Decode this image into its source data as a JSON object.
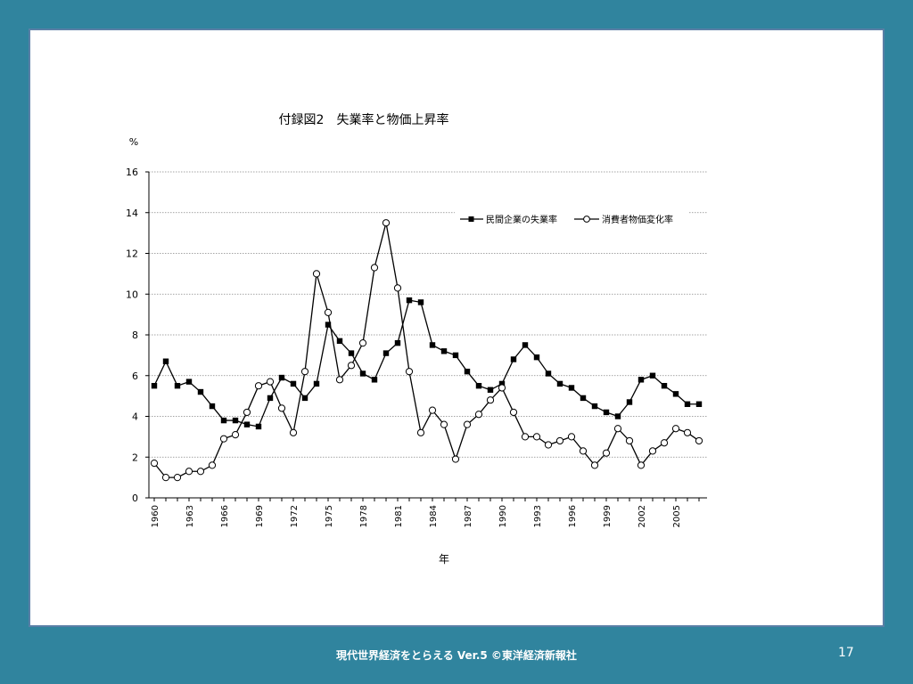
{
  "slide": {
    "footer": "現代世界経済をとらえる Ver.5 ©東洋経済新報社",
    "page_number": "17"
  },
  "chart_data": {
    "type": "line",
    "title": "付録図2　失業率と物価上昇率",
    "ylabel": "%",
    "xlabel": "年",
    "ylim": [
      0,
      16
    ],
    "y_ticks": [
      0,
      2,
      4,
      6,
      8,
      10,
      12,
      14,
      16
    ],
    "x_tick_labels": [
      "1960",
      "1963",
      "1966",
      "1969",
      "1972",
      "1975",
      "1978",
      "1981",
      "1984",
      "1987",
      "1990",
      "1993",
      "1996",
      "1999",
      "2002",
      "2005"
    ],
    "grid": true,
    "legend_position": "top-right",
    "x": [
      1960,
      1961,
      1962,
      1963,
      1964,
      1965,
      1966,
      1967,
      1968,
      1969,
      1970,
      1971,
      1972,
      1973,
      1974,
      1975,
      1976,
      1977,
      1978,
      1979,
      1980,
      1981,
      1982,
      1983,
      1984,
      1985,
      1986,
      1987,
      1988,
      1989,
      1990,
      1991,
      1992,
      1993,
      1994,
      1995,
      1996,
      1997,
      1998,
      1999,
      2000,
      2001,
      2002,
      2003,
      2004,
      2005,
      2006,
      2007
    ],
    "series": [
      {
        "name": "民間企業の失業率",
        "marker": "filled-square",
        "color": "#000000",
        "values": [
          5.5,
          6.7,
          5.5,
          5.7,
          5.2,
          4.5,
          3.8,
          3.8,
          3.6,
          3.5,
          4.9,
          5.9,
          5.6,
          4.9,
          5.6,
          8.5,
          7.7,
          7.1,
          6.1,
          5.8,
          7.1,
          7.6,
          9.7,
          9.6,
          7.5,
          7.2,
          7.0,
          6.2,
          5.5,
          5.3,
          5.6,
          6.8,
          7.5,
          6.9,
          6.1,
          5.6,
          5.4,
          4.9,
          4.5,
          4.2,
          4.0,
          4.7,
          5.8,
          6.0,
          5.5,
          5.1,
          4.6,
          4.6
        ]
      },
      {
        "name": "消費者物価変化率",
        "marker": "open-circle",
        "color": "#000000",
        "values": [
          1.7,
          1.0,
          1.0,
          1.3,
          1.3,
          1.6,
          2.9,
          3.1,
          4.2,
          5.5,
          5.7,
          4.4,
          3.2,
          6.2,
          11.0,
          9.1,
          5.8,
          6.5,
          7.6,
          11.3,
          13.5,
          10.3,
          6.2,
          3.2,
          4.3,
          3.6,
          1.9,
          3.6,
          4.1,
          4.8,
          5.4,
          4.2,
          3.0,
          3.0,
          2.6,
          2.8,
          3.0,
          2.3,
          1.6,
          2.2,
          3.4,
          2.8,
          1.6,
          2.3,
          2.7,
          3.4,
          3.2,
          2.8
        ]
      }
    ]
  }
}
